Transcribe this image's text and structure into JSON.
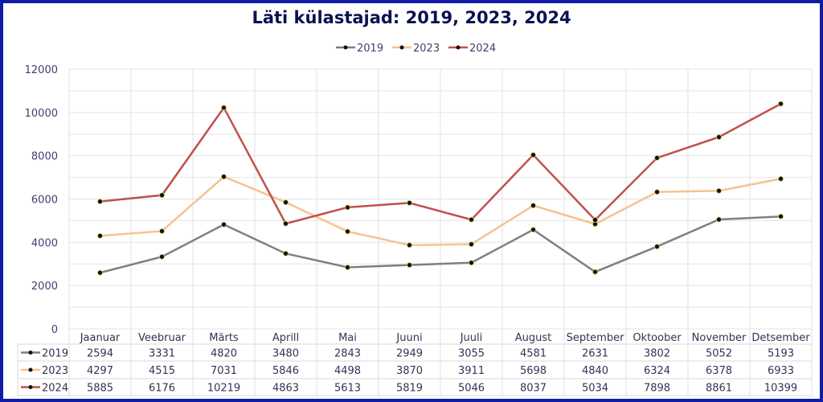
{
  "chart_data": {
    "type": "line",
    "title": "Läti külastajad: 2019, 2023, 2024",
    "xlabel": "",
    "ylabel": "",
    "ylim": [
      0,
      12000
    ],
    "yticks": [
      0,
      2000,
      4000,
      6000,
      8000,
      10000,
      12000
    ],
    "grid": true,
    "legend": "top-center",
    "categories": [
      "Jaanuar",
      "Veebruar",
      "Märts",
      "Aprill",
      "Mai",
      "Juuni",
      "Juuli",
      "August",
      "September",
      "Oktoober",
      "November",
      "Detsember"
    ],
    "series": [
      {
        "name": "2019",
        "color": "#7f7f7f",
        "values": [
          2594,
          3331,
          4820,
          3480,
          2843,
          2949,
          3055,
          4581,
          2631,
          3802,
          5052,
          5193
        ]
      },
      {
        "name": "2023",
        "color": "#f6c28f",
        "values": [
          4297,
          4515,
          7031,
          5846,
          4498,
          3870,
          3911,
          5698,
          4840,
          6324,
          6378,
          6933
        ]
      },
      {
        "name": "2024",
        "color": "#c0504d",
        "values": [
          5885,
          6176,
          10219,
          4863,
          5613,
          5819,
          5046,
          8037,
          5034,
          7898,
          8861,
          10399
        ]
      }
    ],
    "data_table": true
  }
}
